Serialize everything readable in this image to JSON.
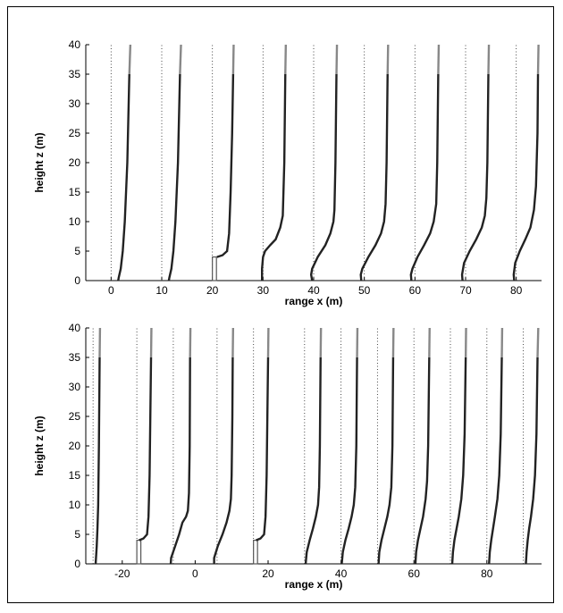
{
  "chart_data": [
    {
      "type": "line",
      "title": "",
      "xlabel": "range x (m)",
      "ylabel": "height z (m)",
      "xlim": [
        -5,
        85
      ],
      "ylim": [
        0,
        40
      ],
      "xticks": [
        "0",
        "10",
        "20",
        "30",
        "40",
        "50",
        "60",
        "70",
        "80"
      ],
      "yticks": [
        "0",
        "5",
        "10",
        "15",
        "20",
        "25",
        "30",
        "35",
        "40"
      ],
      "grid": false,
      "legend": "none",
      "profile_scale": "profile displacement from dotted reference line, 1 x-unit per unit",
      "obstacle": {
        "x": 20,
        "width": 0.8,
        "height": 4
      },
      "series": [
        {
          "x0": 0,
          "points": [
            [
              0,
              1.4
            ],
            [
              0.5,
              1.5
            ],
            [
              2,
              1.9
            ],
            [
              5,
              2.3
            ],
            [
              10,
              2.7
            ],
            [
              20,
              3.2
            ],
            [
              35,
              3.6
            ],
            [
              40,
              3.8
            ]
          ]
        },
        {
          "x0": 10,
          "points": [
            [
              0,
              1.4
            ],
            [
              0.5,
              1.5
            ],
            [
              2,
              1.9
            ],
            [
              5,
              2.3
            ],
            [
              10,
              2.7
            ],
            [
              20,
              3.2
            ],
            [
              35,
              3.6
            ],
            [
              40,
              3.8
            ]
          ]
        },
        {
          "x0": 20,
          "points": [
            [
              4,
              0.9
            ],
            [
              4.3,
              2.0
            ],
            [
              5,
              2.9
            ],
            [
              8,
              3.3
            ],
            [
              15,
              3.6
            ],
            [
              25,
              3.9
            ],
            [
              35,
              4.1
            ],
            [
              40,
              4.2
            ]
          ]
        },
        {
          "x0": 30,
          "points": [
            [
              0,
              -0.2
            ],
            [
              2,
              -0.2
            ],
            [
              4,
              0
            ],
            [
              5,
              0.4
            ],
            [
              6,
              1.4
            ],
            [
              7,
              2.5
            ],
            [
              9,
              3.4
            ],
            [
              11,
              3.9
            ],
            [
              20,
              4.2
            ],
            [
              35,
              4.4
            ],
            [
              40,
              4.5
            ]
          ]
        },
        {
          "x0": 40,
          "points": [
            [
              0,
              -0.3
            ],
            [
              1,
              -0.5
            ],
            [
              2,
              -0.3
            ],
            [
              4,
              0.8
            ],
            [
              6,
              2.3
            ],
            [
              8,
              3.3
            ],
            [
              10,
              3.9
            ],
            [
              12,
              4.1
            ],
            [
              20,
              4.3
            ],
            [
              35,
              4.5
            ],
            [
              40,
              4.6
            ]
          ]
        },
        {
          "x0": 50,
          "points": [
            [
              0,
              -0.6
            ],
            [
              1,
              -0.7
            ],
            [
              2,
              -0.4
            ],
            [
              4,
              0.8
            ],
            [
              6,
              2.2
            ],
            [
              8,
              3.3
            ],
            [
              10,
              3.9
            ],
            [
              13,
              4.2
            ],
            [
              20,
              4.4
            ],
            [
              35,
              4.6
            ],
            [
              40,
              4.7
            ]
          ]
        },
        {
          "x0": 60,
          "points": [
            [
              0,
              -0.7
            ],
            [
              1,
              -0.8
            ],
            [
              2,
              -0.5
            ],
            [
              4,
              0.5
            ],
            [
              6,
              1.8
            ],
            [
              8,
              3.0
            ],
            [
              10,
              3.7
            ],
            [
              13,
              4.2
            ],
            [
              20,
              4.4
            ],
            [
              35,
              4.6
            ],
            [
              40,
              4.7
            ]
          ]
        },
        {
          "x0": 70,
          "points": [
            [
              0,
              -0.6
            ],
            [
              1,
              -0.7
            ],
            [
              3,
              -0.3
            ],
            [
              5,
              0.8
            ],
            [
              7,
              2.1
            ],
            [
              9,
              3.2
            ],
            [
              11,
              3.8
            ],
            [
              14,
              4.1
            ],
            [
              20,
              4.3
            ],
            [
              35,
              4.5
            ],
            [
              40,
              4.6
            ]
          ]
        },
        {
          "x0": 80,
          "points": [
            [
              0,
              -0.4
            ],
            [
              1,
              -0.5
            ],
            [
              3,
              -0.2
            ],
            [
              5,
              0.7
            ],
            [
              7,
              1.8
            ],
            [
              9,
              2.8
            ],
            [
              12,
              3.5
            ],
            [
              16,
              3.9
            ],
            [
              25,
              4.2
            ],
            [
              35,
              4.3
            ],
            [
              40,
              4.4
            ]
          ]
        }
      ]
    },
    {
      "type": "line",
      "title": "",
      "xlabel": "range x (m)",
      "ylabel": "height z (m)",
      "xlim": [
        -30,
        95
      ],
      "ylim": [
        0,
        40
      ],
      "xticks": [
        "-20",
        "0",
        "20",
        "40",
        "60",
        "80"
      ],
      "yticks": [
        "0",
        "5",
        "10",
        "15",
        "20",
        "25",
        "30",
        "35",
        "40"
      ],
      "grid": false,
      "legend": "none",
      "profile_scale": "profile displacement from dotted reference line, 1 x-unit per unit",
      "obstacles": [
        {
          "x": -16,
          "width": 1.1,
          "height": 4
        },
        {
          "x": 16,
          "width": 1.1,
          "height": 4
        }
      ],
      "series": [
        {
          "x0": -28,
          "points": [
            [
              0,
              0.7
            ],
            [
              1,
              0.8
            ],
            [
              3,
              1.0
            ],
            [
              6,
              1.2
            ],
            [
              10,
              1.4
            ],
            [
              20,
              1.6
            ],
            [
              35,
              1.8
            ],
            [
              40,
              1.9
            ]
          ]
        },
        {
          "x0": -16,
          "points": [
            [
              4,
              0.6
            ],
            [
              4.3,
              1.8
            ],
            [
              5,
              2.8
            ],
            [
              8,
              3.2
            ],
            [
              15,
              3.5
            ],
            [
              25,
              3.7
            ],
            [
              35,
              3.9
            ],
            [
              40,
              4.0
            ]
          ]
        },
        {
          "x0": -6,
          "points": [
            [
              0,
              -0.7
            ],
            [
              1,
              -0.6
            ],
            [
              3,
              0.5
            ],
            [
              5,
              1.6
            ],
            [
              7,
              2.5
            ],
            [
              8,
              3.5
            ],
            [
              9,
              4.0
            ],
            [
              12,
              4.3
            ],
            [
              20,
              4.5
            ],
            [
              35,
              4.6
            ],
            [
              40,
              4.7
            ]
          ]
        },
        {
          "x0": 6,
          "points": [
            [
              0,
              -0.8
            ],
            [
              1,
              -0.8
            ],
            [
              3,
              0.2
            ],
            [
              5,
              1.5
            ],
            [
              7,
              2.6
            ],
            [
              9,
              3.4
            ],
            [
              11,
              3.8
            ],
            [
              15,
              4.0
            ],
            [
              25,
              4.2
            ],
            [
              35,
              4.3
            ],
            [
              40,
              4.4
            ]
          ]
        },
        {
          "x0": 16,
          "points": [
            [
              4,
              0.7
            ],
            [
              4.3,
              1.9
            ],
            [
              5,
              2.9
            ],
            [
              8,
              3.3
            ],
            [
              15,
              3.6
            ],
            [
              25,
              3.8
            ],
            [
              35,
              4.0
            ],
            [
              40,
              4.1
            ]
          ]
        },
        {
          "x0": 30,
          "points": [
            [
              0,
              0.3
            ],
            [
              2,
              0.6
            ],
            [
              4,
              1.4
            ],
            [
              6,
              2.3
            ],
            [
              8,
              3.1
            ],
            [
              10,
              3.7
            ],
            [
              13,
              4.0
            ],
            [
              20,
              4.2
            ],
            [
              35,
              4.4
            ],
            [
              40,
              4.5
            ]
          ]
        },
        {
          "x0": 40,
          "points": [
            [
              0,
              0.2
            ],
            [
              2,
              0.5
            ],
            [
              4,
              1.2
            ],
            [
              6,
              2.1
            ],
            [
              8,
              2.9
            ],
            [
              10,
              3.5
            ],
            [
              13,
              3.9
            ],
            [
              20,
              4.2
            ],
            [
              35,
              4.4
            ],
            [
              40,
              4.5
            ]
          ]
        },
        {
          "x0": 50,
          "points": [
            [
              0,
              0.3
            ],
            [
              2,
              0.5
            ],
            [
              4,
              1.1
            ],
            [
              6,
              1.9
            ],
            [
              8,
              2.7
            ],
            [
              10,
              3.3
            ],
            [
              13,
              3.8
            ],
            [
              20,
              4.1
            ],
            [
              35,
              4.3
            ],
            [
              40,
              4.4
            ]
          ]
        },
        {
          "x0": 60,
          "points": [
            [
              0,
              0.4
            ],
            [
              2,
              0.6
            ],
            [
              4,
              1.1
            ],
            [
              6,
              1.8
            ],
            [
              8,
              2.5
            ],
            [
              11,
              3.2
            ],
            [
              14,
              3.6
            ],
            [
              20,
              3.9
            ],
            [
              35,
              4.2
            ],
            [
              40,
              4.3
            ]
          ]
        },
        {
          "x0": 70,
          "points": [
            [
              0,
              0.5
            ],
            [
              2,
              0.7
            ],
            [
              4,
              1.1
            ],
            [
              6,
              1.7
            ],
            [
              8,
              2.3
            ],
            [
              11,
              3.0
            ],
            [
              15,
              3.5
            ],
            [
              22,
              3.9
            ],
            [
              35,
              4.2
            ],
            [
              40,
              4.3
            ]
          ]
        },
        {
          "x0": 80,
          "points": [
            [
              0,
              0.6
            ],
            [
              2,
              0.8
            ],
            [
              4,
              1.2
            ],
            [
              6,
              1.7
            ],
            [
              8,
              2.2
            ],
            [
              11,
              2.9
            ],
            [
              15,
              3.4
            ],
            [
              22,
              3.8
            ],
            [
              35,
              4.1
            ],
            [
              40,
              4.2
            ]
          ]
        },
        {
          "x0": 90,
          "points": [
            [
              0,
              0.7
            ],
            [
              2,
              0.9
            ],
            [
              4,
              1.2
            ],
            [
              6,
              1.6
            ],
            [
              8,
              2.1
            ],
            [
              11,
              2.7
            ],
            [
              15,
              3.2
            ],
            [
              22,
              3.6
            ],
            [
              35,
              3.9
            ],
            [
              40,
              4.1
            ]
          ]
        }
      ]
    }
  ]
}
